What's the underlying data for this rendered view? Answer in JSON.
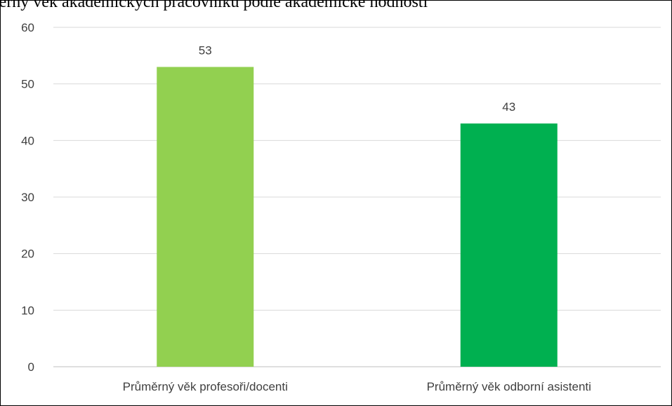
{
  "chart_data": {
    "type": "bar",
    "title": "růměrný věk akademických pracovníků podle akademické hodnosti",
    "xlabel": "",
    "ylabel": "",
    "categories": [
      "Průměrný věk profesoři/docenti",
      "Průměrný věk odborní asistenti"
    ],
    "values": [
      53,
      43
    ],
    "data_labels": [
      "53",
      "43"
    ],
    "bar_colors": [
      "#92d050",
      "#00b050"
    ],
    "ylim": [
      0,
      60
    ],
    "yticks": [
      0,
      10,
      20,
      30,
      40,
      50,
      60
    ],
    "grid": true,
    "legend": "none"
  }
}
